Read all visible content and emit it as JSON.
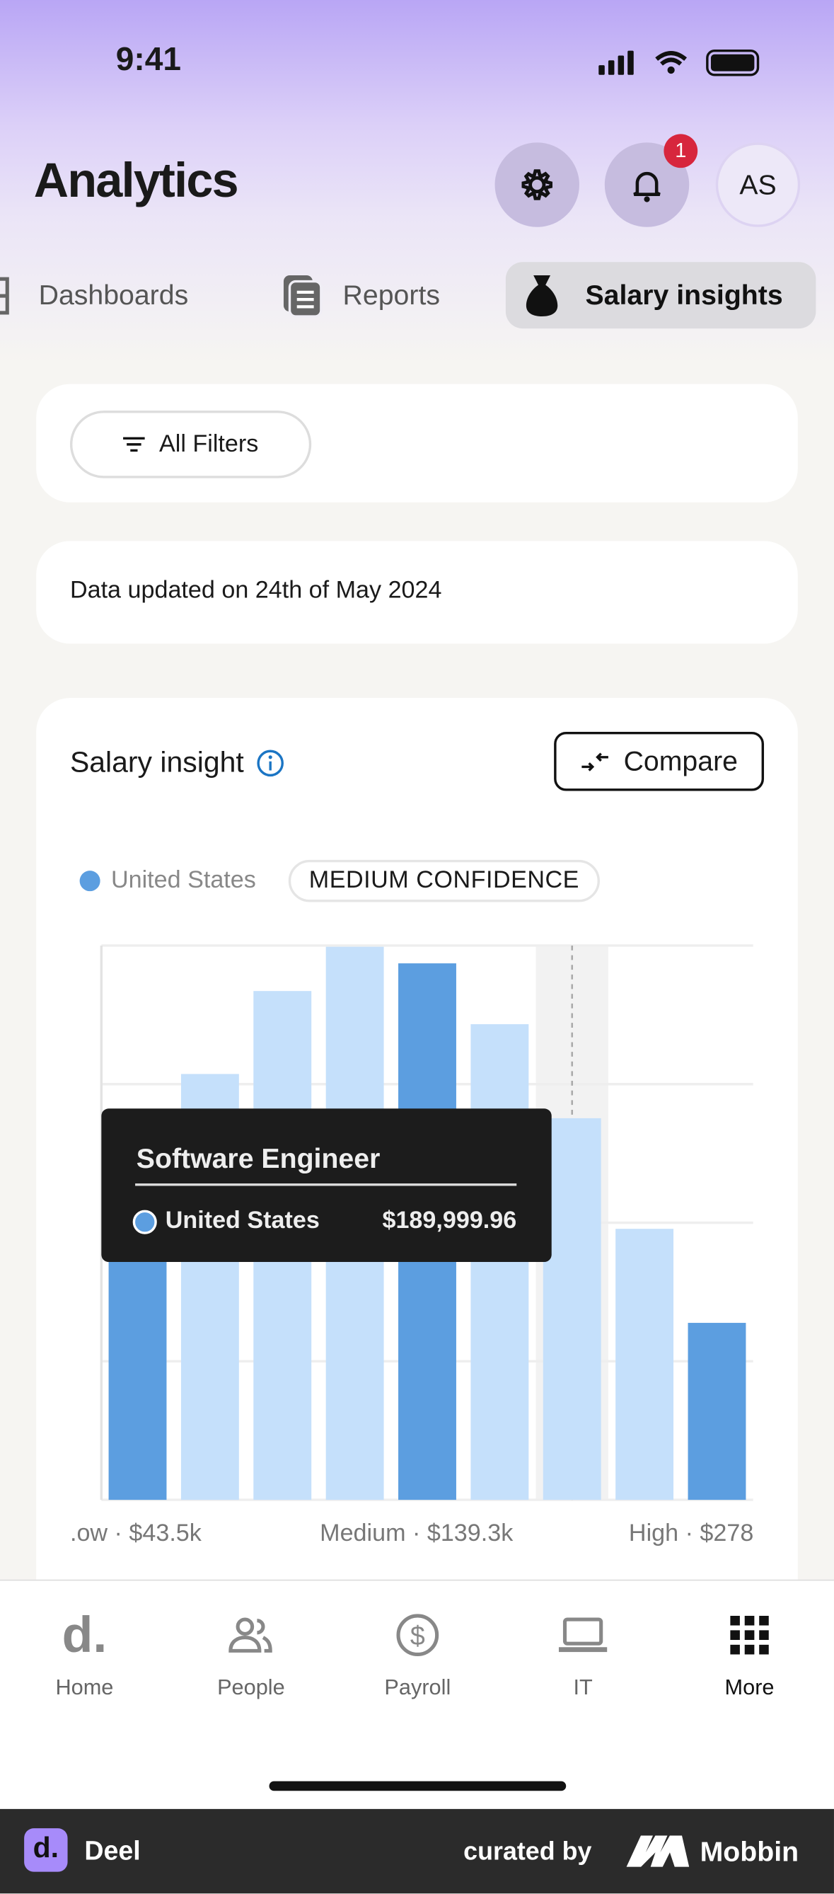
{
  "status_bar": {
    "time": "9:41"
  },
  "header": {
    "title": "Analytics",
    "notification_count": "1",
    "avatar_initials": "AS"
  },
  "tabs": [
    {
      "label": "Dashboards",
      "icon": "grid-icon"
    },
    {
      "label": "Reports",
      "icon": "reports-icon"
    },
    {
      "label": "Salary insights",
      "icon": "money-bag-icon",
      "active": true
    }
  ],
  "filters": {
    "label": "All Filters"
  },
  "updated": {
    "text": "Data updated on 24th of May 2024"
  },
  "insight": {
    "title": "Salary insight",
    "compare_label": "Compare",
    "legend": "United States",
    "confidence": "MEDIUM CONFIDENCE",
    "tooltip": {
      "title": "Software Engineer",
      "series": "United States",
      "value": "$189,999.96"
    },
    "x_labels": [
      ".ow · $43.5k",
      "Medium · $139.3k",
      "High · $278"
    ]
  },
  "chart_data": {
    "type": "bar",
    "values": [
      0.6,
      0.77,
      0.92,
      1.0,
      0.97,
      0.86,
      0.69,
      0.49,
      0.32
    ],
    "highlighted": [
      0,
      4,
      8
    ],
    "hovered": 6,
    "ylim": [
      0,
      1
    ],
    "grid": true,
    "colors": {
      "normal": "#c5e0fb",
      "highlighted": "#5c9ee0",
      "hover_band": "#f2f2f2"
    }
  },
  "nav": [
    {
      "label": "Home"
    },
    {
      "label": "People"
    },
    {
      "label": "Payroll"
    },
    {
      "label": "IT"
    },
    {
      "label": "More",
      "active": true
    }
  ],
  "footer": {
    "brand": "Deel",
    "curated": "curated by",
    "mobbin": "Mobbin"
  }
}
